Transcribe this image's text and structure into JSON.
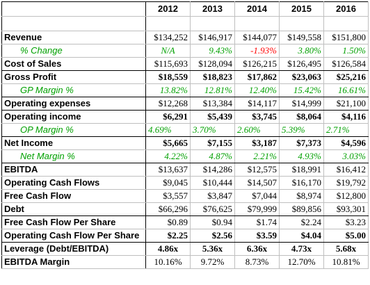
{
  "years": [
    "2012",
    "2013",
    "2014",
    "2015",
    "2016"
  ],
  "rows": {
    "revenue": {
      "label": "Revenue",
      "values": [
        "$134,252",
        "$146,917",
        "$144,077",
        "$149,558",
        "$151,800"
      ]
    },
    "pct_change": {
      "label": "% Change",
      "values": [
        "N/A",
        "9.43%",
        "-1.93%",
        "3.80%",
        "1.50%"
      ]
    },
    "cost_of_sales": {
      "label": "Cost of Sales",
      "values": [
        "$115,693",
        "$128,094",
        "$126,215",
        "$126,495",
        "$126,584"
      ]
    },
    "gross_profit": {
      "label": "Gross Profit",
      "values": [
        "$18,559",
        "$18,823",
        "$17,862",
        "$23,063",
        "$25,216"
      ]
    },
    "gp_margin": {
      "label": "GP Margin %",
      "values": [
        "13.82%",
        "12.81%",
        "12.40%",
        "15.42%",
        "16.61%"
      ]
    },
    "operating_expenses": {
      "label": "Operating expenses",
      "values": [
        "$12,268",
        "$13,384",
        "$14,117",
        "$14,999",
        "$21,100"
      ]
    },
    "operating_income": {
      "label": "Operating income",
      "values": [
        "$6,291",
        "$5,439",
        "$3,745",
        "$8,064",
        "$4,116"
      ]
    },
    "op_margin": {
      "label": "OP Margin %",
      "values": [
        "4.69%",
        "3.70%",
        "2.60%",
        "5.39%",
        "2.71%"
      ]
    },
    "net_income": {
      "label": "Net Income",
      "values": [
        "$5,665",
        "$7,155",
        "$3,187",
        "$7,373",
        "$4,596"
      ]
    },
    "net_margin": {
      "label": "Net Margin %",
      "values": [
        "4.22%",
        "4.87%",
        "2.21%",
        "4.93%",
        "3.03%"
      ]
    },
    "ebitda": {
      "label": "EBITDA",
      "values": [
        "$13,637",
        "$14,286",
        "$12,575",
        "$18,991",
        "$16,412"
      ]
    },
    "operating_cash_flows": {
      "label": "Operating Cash Flows",
      "values": [
        "$9,045",
        "$10,444",
        "$14,507",
        "$16,170",
        "$19,792"
      ]
    },
    "free_cash_flow": {
      "label": "Free Cash Flow",
      "values": [
        "$3,557",
        "$3,847",
        "$7,044",
        "$8,974",
        "$12,800"
      ]
    },
    "debt": {
      "label": "Debt",
      "values": [
        "$66,296",
        "$76,625",
        "$79,999",
        "$89,856",
        "$93,301"
      ]
    },
    "fcf_per_share": {
      "label": "Free Cash Flow Per Share",
      "values": [
        "$0.89",
        "$0.94",
        "$1.74",
        "$2.24",
        "$3.23"
      ]
    },
    "ocf_per_share": {
      "label": "Operating Cash Flow Per Share",
      "values": [
        "$2.25",
        "$2.56",
        "$3.59",
        "$4.04",
        "$5.00"
      ]
    },
    "leverage": {
      "label": "Leverage (Debt/EBITDA)",
      "values": [
        "4.86x",
        "5.36x",
        "6.36x",
        "4.73x",
        "5.68x"
      ]
    },
    "ebitda_margin": {
      "label": "EBITDA Margin",
      "values": [
        "10.16%",
        "9.72%",
        "8.73%",
        "12.70%",
        "10.81%"
      ]
    }
  },
  "colors": {
    "positive": "#00a000",
    "negative": "#ff0000",
    "text": "#000000"
  }
}
